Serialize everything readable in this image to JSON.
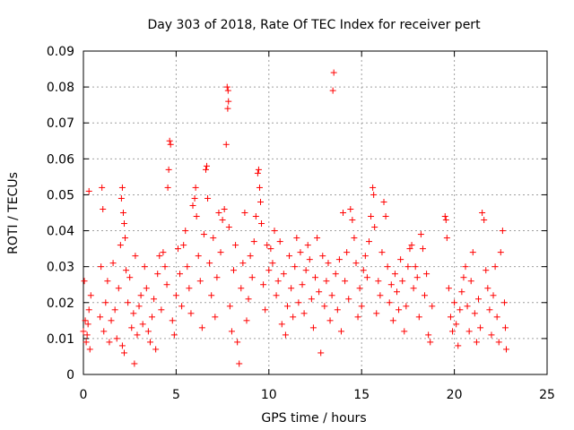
{
  "chart_data": {
    "type": "scatter",
    "title": "Day 303 of 2018, Rate Of TEC Index for receiver pert",
    "xlabel": "GPS time / hours",
    "ylabel": "ROTI / TECUs",
    "xlim": [
      0,
      25
    ],
    "ylim": [
      0,
      0.09
    ],
    "x_ticks": [
      0,
      5,
      10,
      15,
      20,
      25
    ],
    "x_tick_labels": [
      "0",
      "5",
      "10",
      "15",
      "20",
      "25"
    ],
    "y_ticks": [
      0,
      0.01,
      0.02,
      0.03,
      0.04,
      0.05,
      0.06,
      0.07,
      0.08,
      0.09
    ],
    "y_tick_labels": [
      "0",
      "0.01",
      "0.02",
      "0.03",
      "0.04",
      "0.05",
      "0.06",
      "0.07",
      "0.08",
      "0.09"
    ],
    "grid": true,
    "marker": "+",
    "color": "#ff0000",
    "series": [
      {
        "points": [
          [
            0.0,
            0.012
          ],
          [
            0.05,
            0.026
          ],
          [
            0.1,
            0.015
          ],
          [
            0.15,
            0.009
          ],
          [
            0.2,
            0.011
          ],
          [
            0.25,
            0.014
          ],
          [
            0.3,
            0.018
          ],
          [
            0.35,
            0.007
          ],
          [
            0.3,
            0.051
          ],
          [
            0.4,
            0.022
          ],
          [
            0.9,
            0.016
          ],
          [
            0.95,
            0.03
          ],
          [
            1.0,
            0.052
          ],
          [
            1.05,
            0.046
          ],
          [
            1.1,
            0.012
          ],
          [
            1.2,
            0.02
          ],
          [
            1.3,
            0.026
          ],
          [
            1.4,
            0.009
          ],
          [
            1.5,
            0.015
          ],
          [
            1.6,
            0.031
          ],
          [
            1.7,
            0.018
          ],
          [
            1.8,
            0.01
          ],
          [
            1.9,
            0.024
          ],
          [
            2.0,
            0.036
          ],
          [
            2.05,
            0.049
          ],
          [
            2.1,
            0.052
          ],
          [
            2.15,
            0.045
          ],
          [
            2.2,
            0.042
          ],
          [
            2.25,
            0.038
          ],
          [
            2.3,
            0.029
          ],
          [
            2.1,
            0.008
          ],
          [
            2.2,
            0.006
          ],
          [
            2.4,
            0.02
          ],
          [
            2.5,
            0.027
          ],
          [
            2.6,
            0.013
          ],
          [
            2.7,
            0.017
          ],
          [
            2.8,
            0.033
          ],
          [
            2.9,
            0.011
          ],
          [
            2.75,
            0.003
          ],
          [
            3.0,
            0.019
          ],
          [
            3.1,
            0.022
          ],
          [
            3.2,
            0.014
          ],
          [
            3.3,
            0.03
          ],
          [
            3.4,
            0.024
          ],
          [
            3.5,
            0.012
          ],
          [
            3.6,
            0.009
          ],
          [
            3.7,
            0.016
          ],
          [
            3.8,
            0.021
          ],
          [
            3.9,
            0.007
          ],
          [
            4.0,
            0.028
          ],
          [
            4.1,
            0.033
          ],
          [
            4.2,
            0.018
          ],
          [
            4.3,
            0.034
          ],
          [
            4.4,
            0.03
          ],
          [
            4.5,
            0.025
          ],
          [
            4.55,
            0.052
          ],
          [
            4.6,
            0.057
          ],
          [
            4.65,
            0.065
          ],
          [
            4.7,
            0.064
          ],
          [
            4.8,
            0.015
          ],
          [
            4.9,
            0.011
          ],
          [
            5.0,
            0.022
          ],
          [
            5.1,
            0.035
          ],
          [
            5.2,
            0.028
          ],
          [
            5.3,
            0.019
          ],
          [
            5.4,
            0.036
          ],
          [
            5.5,
            0.04
          ],
          [
            5.6,
            0.03
          ],
          [
            5.7,
            0.024
          ],
          [
            5.8,
            0.017
          ],
          [
            5.9,
            0.047
          ],
          [
            6.0,
            0.049
          ],
          [
            6.05,
            0.052
          ],
          [
            6.1,
            0.044
          ],
          [
            6.2,
            0.033
          ],
          [
            6.3,
            0.026
          ],
          [
            6.4,
            0.013
          ],
          [
            6.5,
            0.039
          ],
          [
            6.6,
            0.057
          ],
          [
            6.65,
            0.058
          ],
          [
            6.7,
            0.049
          ],
          [
            6.8,
            0.031
          ],
          [
            6.9,
            0.022
          ],
          [
            7.0,
            0.038
          ],
          [
            7.1,
            0.016
          ],
          [
            7.2,
            0.027
          ],
          [
            7.3,
            0.045
          ],
          [
            7.4,
            0.034
          ],
          [
            7.5,
            0.043
          ],
          [
            7.6,
            0.046
          ],
          [
            7.7,
            0.064
          ],
          [
            7.75,
            0.08
          ],
          [
            7.8,
            0.079
          ],
          [
            7.78,
            0.074
          ],
          [
            7.82,
            0.076
          ],
          [
            7.85,
            0.041
          ],
          [
            7.9,
            0.019
          ],
          [
            8.0,
            0.012
          ],
          [
            8.1,
            0.029
          ],
          [
            8.2,
            0.036
          ],
          [
            8.3,
            0.009
          ],
          [
            8.4,
            0.003
          ],
          [
            8.5,
            0.024
          ],
          [
            8.6,
            0.031
          ],
          [
            8.7,
            0.045
          ],
          [
            8.8,
            0.015
          ],
          [
            8.9,
            0.021
          ],
          [
            9.0,
            0.033
          ],
          [
            9.1,
            0.027
          ],
          [
            9.2,
            0.037
          ],
          [
            9.3,
            0.044
          ],
          [
            9.4,
            0.056
          ],
          [
            9.45,
            0.057
          ],
          [
            9.5,
            0.052
          ],
          [
            9.55,
            0.048
          ],
          [
            9.6,
            0.042
          ],
          [
            9.7,
            0.025
          ],
          [
            9.8,
            0.018
          ],
          [
            9.9,
            0.036
          ],
          [
            10.0,
            0.029
          ],
          [
            10.1,
            0.035
          ],
          [
            10.2,
            0.031
          ],
          [
            10.3,
            0.04
          ],
          [
            10.4,
            0.022
          ],
          [
            10.5,
            0.026
          ],
          [
            10.6,
            0.037
          ],
          [
            10.7,
            0.014
          ],
          [
            10.8,
            0.028
          ],
          [
            10.9,
            0.011
          ],
          [
            11.0,
            0.019
          ],
          [
            11.1,
            0.033
          ],
          [
            11.2,
            0.024
          ],
          [
            11.3,
            0.016
          ],
          [
            11.4,
            0.03
          ],
          [
            11.5,
            0.038
          ],
          [
            11.6,
            0.02
          ],
          [
            11.7,
            0.034
          ],
          [
            11.8,
            0.025
          ],
          [
            11.9,
            0.017
          ],
          [
            12.0,
            0.029
          ],
          [
            12.1,
            0.036
          ],
          [
            12.2,
            0.032
          ],
          [
            12.3,
            0.021
          ],
          [
            12.4,
            0.013
          ],
          [
            12.5,
            0.027
          ],
          [
            12.6,
            0.038
          ],
          [
            12.7,
            0.023
          ],
          [
            12.8,
            0.006
          ],
          [
            12.9,
            0.033
          ],
          [
            13.0,
            0.019
          ],
          [
            13.1,
            0.026
          ],
          [
            13.2,
            0.031
          ],
          [
            13.3,
            0.015
          ],
          [
            13.4,
            0.022
          ],
          [
            13.45,
            0.079
          ],
          [
            13.5,
            0.084
          ],
          [
            13.6,
            0.028
          ],
          [
            13.7,
            0.018
          ],
          [
            13.8,
            0.032
          ],
          [
            13.9,
            0.012
          ],
          [
            14.0,
            0.045
          ],
          [
            14.1,
            0.026
          ],
          [
            14.2,
            0.034
          ],
          [
            14.3,
            0.021
          ],
          [
            14.4,
            0.046
          ],
          [
            14.5,
            0.043
          ],
          [
            14.6,
            0.038
          ],
          [
            14.7,
            0.031
          ],
          [
            14.8,
            0.016
          ],
          [
            14.9,
            0.024
          ],
          [
            15.0,
            0.019
          ],
          [
            15.1,
            0.029
          ],
          [
            15.2,
            0.033
          ],
          [
            15.3,
            0.027
          ],
          [
            15.4,
            0.037
          ],
          [
            15.5,
            0.044
          ],
          [
            15.6,
            0.052
          ],
          [
            15.65,
            0.05
          ],
          [
            15.7,
            0.041
          ],
          [
            15.8,
            0.017
          ],
          [
            15.9,
            0.026
          ],
          [
            16.0,
            0.022
          ],
          [
            16.1,
            0.034
          ],
          [
            16.2,
            0.048
          ],
          [
            16.3,
            0.044
          ],
          [
            16.4,
            0.03
          ],
          [
            16.5,
            0.02
          ],
          [
            16.6,
            0.025
          ],
          [
            16.7,
            0.015
          ],
          [
            16.8,
            0.028
          ],
          [
            16.9,
            0.023
          ],
          [
            17.0,
            0.018
          ],
          [
            17.1,
            0.032
          ],
          [
            17.2,
            0.026
          ],
          [
            17.3,
            0.012
          ],
          [
            17.4,
            0.019
          ],
          [
            17.5,
            0.03
          ],
          [
            17.6,
            0.035
          ],
          [
            17.7,
            0.036
          ],
          [
            17.8,
            0.024
          ],
          [
            17.9,
            0.03
          ],
          [
            18.0,
            0.027
          ],
          [
            18.1,
            0.016
          ],
          [
            18.2,
            0.039
          ],
          [
            18.3,
            0.035
          ],
          [
            18.4,
            0.022
          ],
          [
            18.5,
            0.028
          ],
          [
            18.6,
            0.011
          ],
          [
            18.7,
            0.009
          ],
          [
            18.8,
            0.019
          ],
          [
            19.5,
            0.044
          ],
          [
            19.55,
            0.043
          ],
          [
            19.6,
            0.038
          ],
          [
            19.7,
            0.024
          ],
          [
            19.8,
            0.016
          ],
          [
            19.9,
            0.012
          ],
          [
            20.0,
            0.02
          ],
          [
            20.1,
            0.014
          ],
          [
            20.2,
            0.008
          ],
          [
            20.3,
            0.018
          ],
          [
            20.4,
            0.023
          ],
          [
            20.5,
            0.027
          ],
          [
            20.6,
            0.03
          ],
          [
            20.7,
            0.019
          ],
          [
            20.8,
            0.012
          ],
          [
            20.9,
            0.026
          ],
          [
            21.0,
            0.034
          ],
          [
            21.1,
            0.017
          ],
          [
            21.2,
            0.009
          ],
          [
            21.3,
            0.021
          ],
          [
            21.4,
            0.013
          ],
          [
            21.5,
            0.045
          ],
          [
            21.6,
            0.043
          ],
          [
            21.7,
            0.029
          ],
          [
            21.8,
            0.024
          ],
          [
            21.9,
            0.018
          ],
          [
            22.0,
            0.011
          ],
          [
            22.1,
            0.022
          ],
          [
            22.2,
            0.03
          ],
          [
            22.3,
            0.016
          ],
          [
            22.4,
            0.009
          ],
          [
            22.5,
            0.034
          ],
          [
            22.6,
            0.04
          ],
          [
            22.7,
            0.02
          ],
          [
            22.75,
            0.013
          ],
          [
            22.8,
            0.007
          ]
        ]
      }
    ]
  }
}
